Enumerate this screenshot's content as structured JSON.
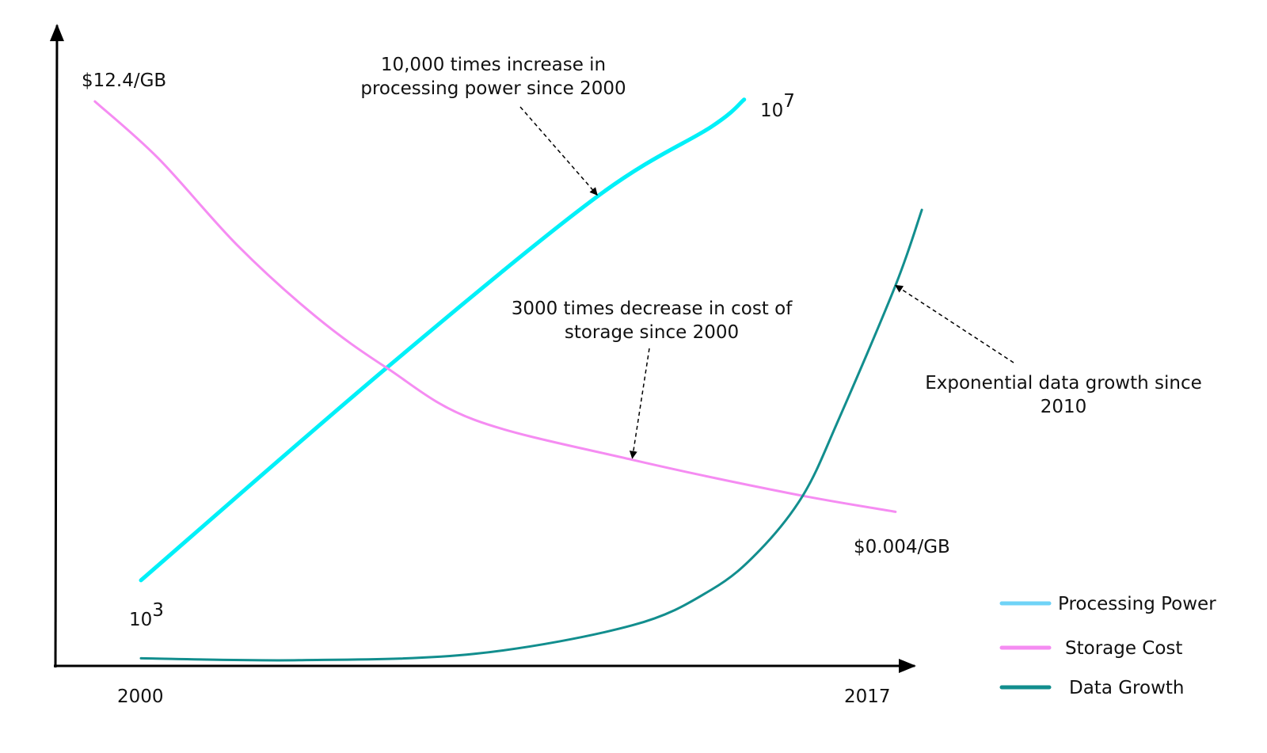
{
  "chart_data": {
    "type": "line",
    "title": "",
    "xlabel": "",
    "ylabel": "",
    "x_ticks": [
      "2000",
      "2017"
    ],
    "xlim": [
      2000,
      2017
    ],
    "y_scale": "relative, unlabeled (0-100 index)",
    "grid": false,
    "legend_position": "bottom-right",
    "series": [
      {
        "name": "Processing Power",
        "color": "#00f0f8",
        "legend_color": "#6fd3f7",
        "points": [
          [
            2000,
            13.5
          ],
          [
            2005.6,
            47
          ],
          [
            2010.4,
            74
          ],
          [
            2013,
            85
          ],
          [
            2013.75,
            89.3
          ]
        ],
        "start_label": {
          "base": "10",
          "exp": "3"
        },
        "end_label": {
          "base": "10",
          "exp": "7"
        }
      },
      {
        "name": "Storage Cost",
        "color": "#f58cf2",
        "legend_color": "#f58cf2",
        "points": [
          [
            1998.95,
            89
          ],
          [
            2000.4,
            80
          ],
          [
            2002.2,
            66.3
          ],
          [
            2004,
            55
          ],
          [
            2005.6,
            47
          ],
          [
            2007.6,
            38.8
          ],
          [
            2011.2,
            32.5
          ],
          [
            2014.8,
            27.2
          ],
          [
            2017.2,
            24.3
          ]
        ],
        "start_label": "$12.4/GB",
        "end_label": "$0.004/GB"
      },
      {
        "name": "Data Growth",
        "color": "#128e8e",
        "legend_color": "#128e8e",
        "points": [
          [
            2000,
            1.2
          ],
          [
            2003.6,
            0.9
          ],
          [
            2007.6,
            1.9
          ],
          [
            2011.2,
            6.4
          ],
          [
            2013,
            12
          ],
          [
            2014.1,
            18.2
          ],
          [
            2015.1,
            27
          ],
          [
            2015.9,
            38.8
          ],
          [
            2017.2,
            60
          ],
          [
            2017.8,
            71.9
          ]
        ]
      }
    ],
    "annotations": [
      {
        "lines": [
          "10,000 times increase in",
          "processing power since 2000"
        ],
        "target_series": "Processing Power",
        "target_x": 2010.4
      },
      {
        "lines": [
          "3000 times decrease in cost of",
          "storage since 2000"
        ],
        "target_series": "Storage Cost",
        "target_x": 2011.2
      },
      {
        "lines": [
          "Exponential data growth since",
          "2010"
        ],
        "target_series": "Data Growth",
        "target_x": 2017.2
      }
    ]
  }
}
